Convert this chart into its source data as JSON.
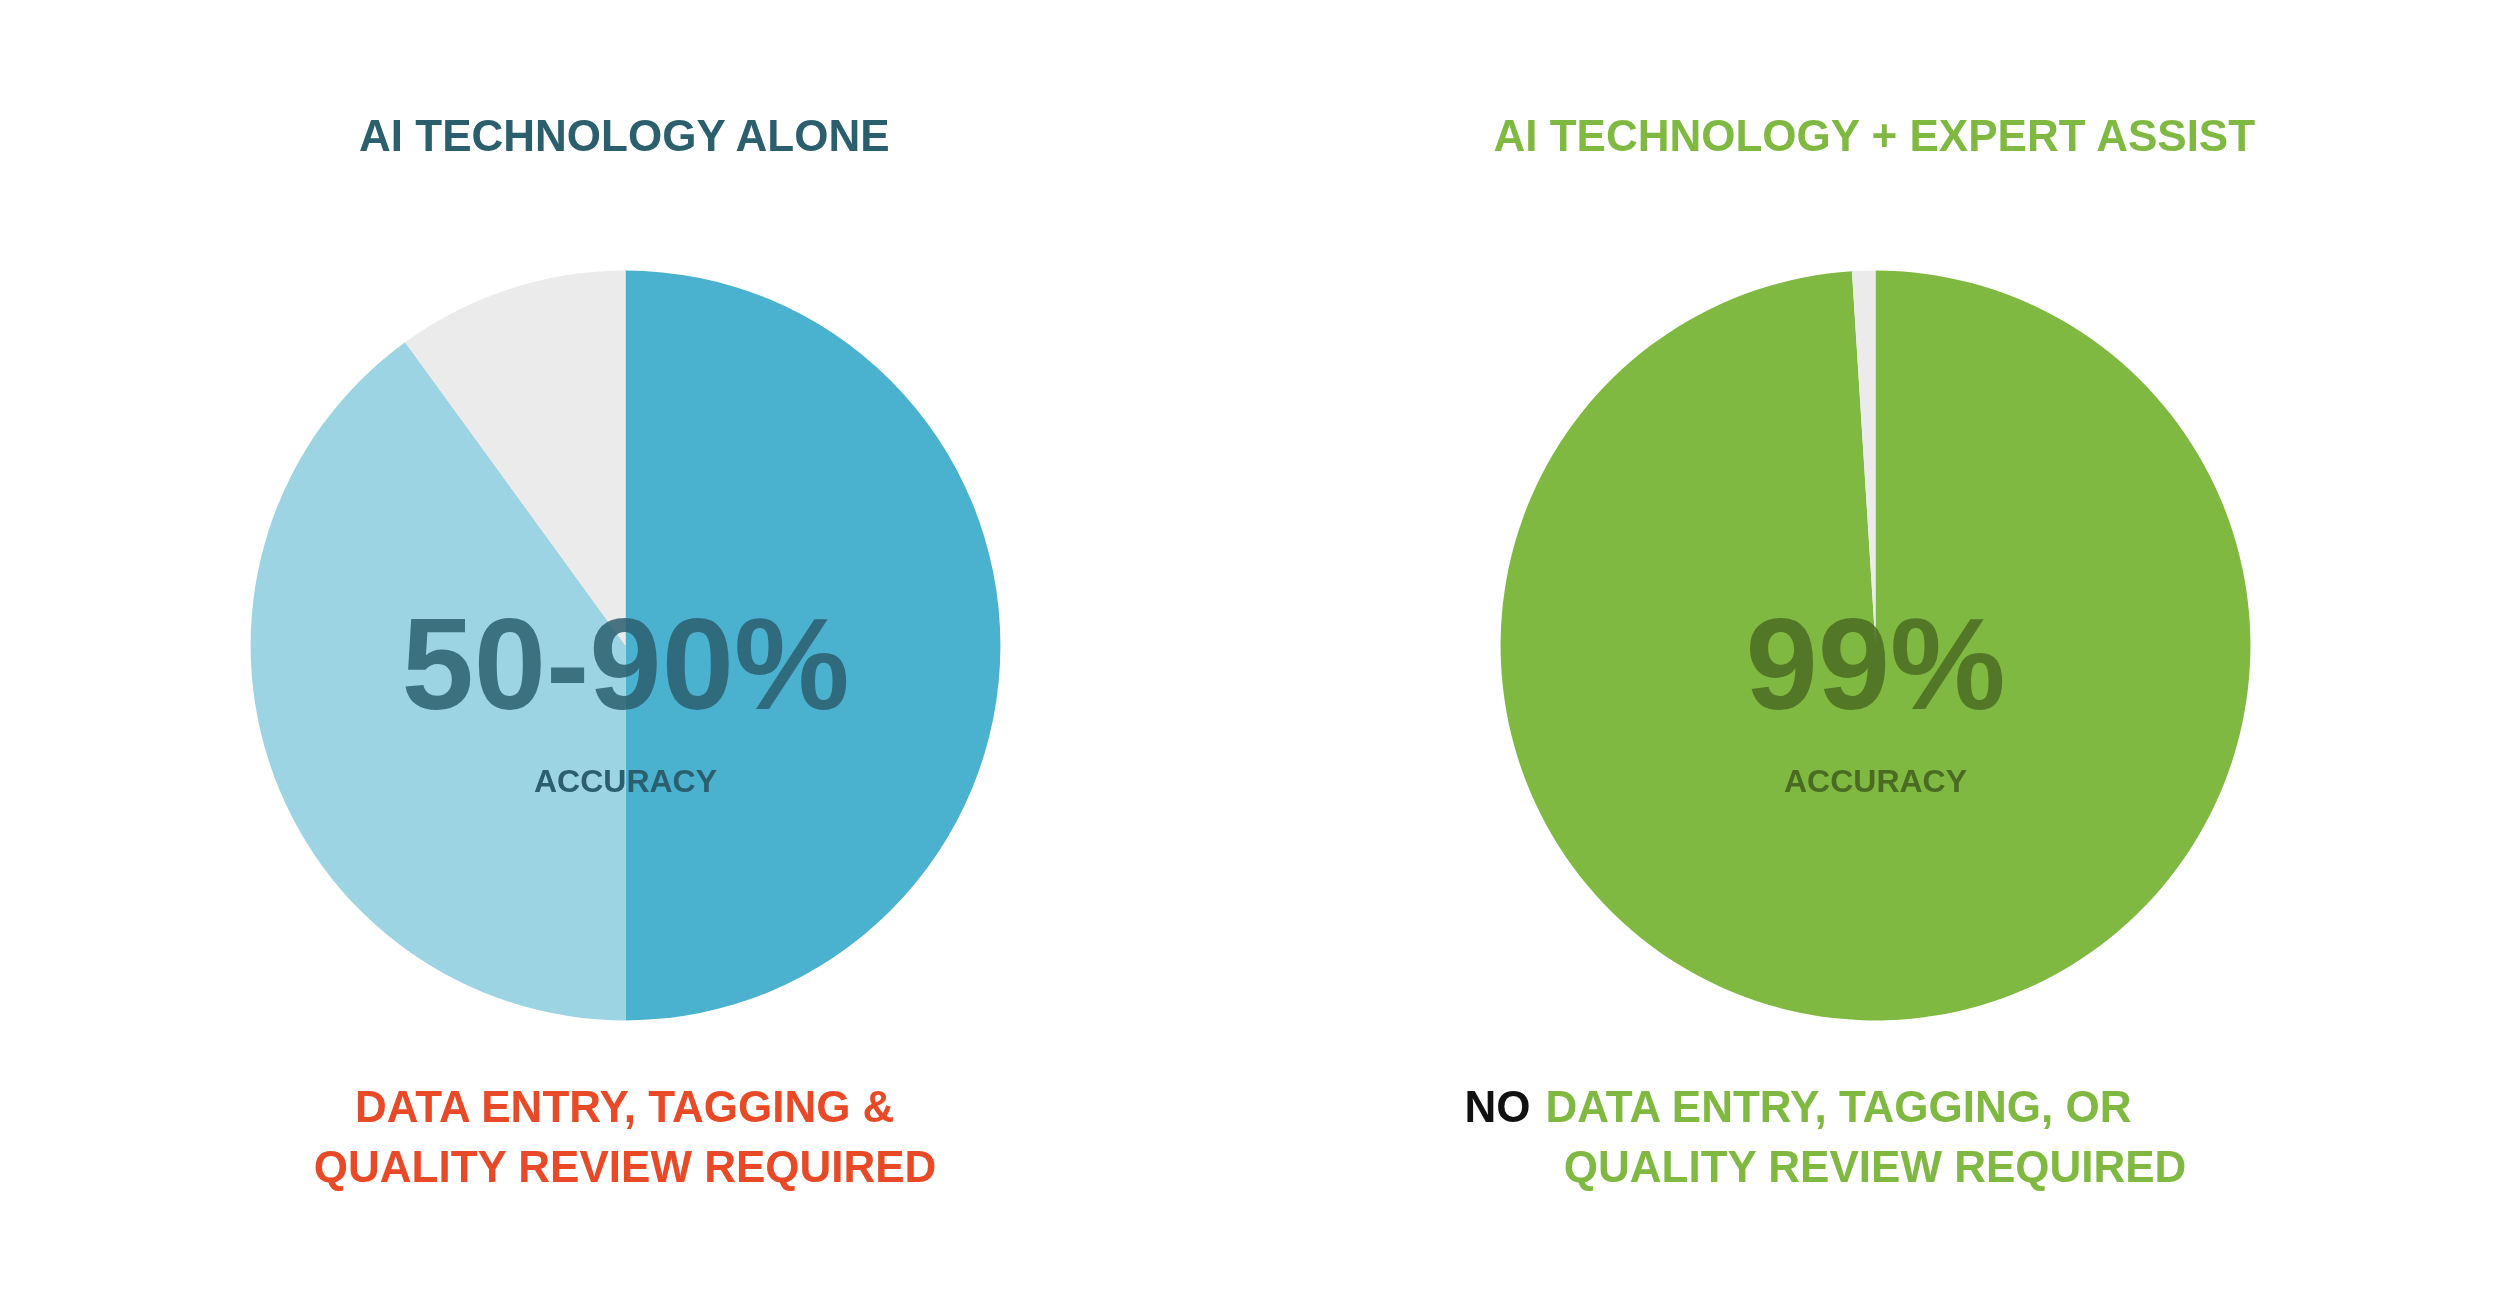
{
  "chart_data": [
    {
      "type": "pie",
      "title": "AI TECHNOLOGY ALONE",
      "categories": [
        null,
        null,
        null
      ],
      "values": [
        50,
        40,
        10
      ],
      "colors": [
        "#4ab1cf",
        "#9dd4e3",
        "#ebebeb"
      ],
      "annotations": [
        "50-90%",
        "ACCURACY",
        "DATA ENTRY, TAGGING &",
        "QUALITY REVIEW REQUIRED"
      ]
    },
    {
      "type": "pie",
      "title": "AI TECHNOLOGY + EXPERT ASSIST",
      "categories": [
        null,
        null
      ],
      "values": [
        99,
        1
      ],
      "colors": [
        "#80b941",
        "#ebebeb"
      ],
      "annotations": [
        "99%",
        "ACCURACY",
        "NO",
        "DATA ENTRY, TAGGING, OR",
        "QUALITY REVIEW REQUIRED"
      ]
    }
  ]
}
